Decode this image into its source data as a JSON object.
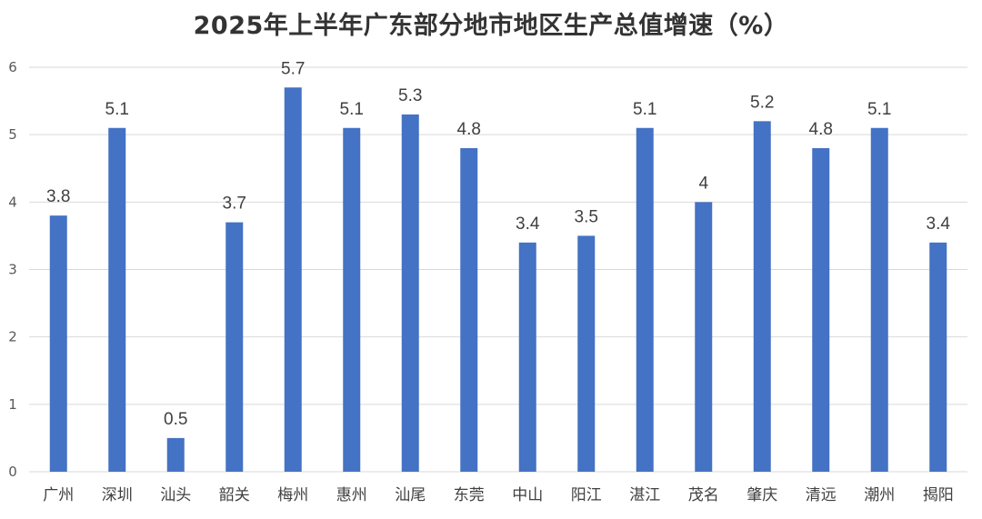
{
  "chart_data": {
    "type": "bar",
    "title": "2025年上半年广东部分地市地区生产总值增速（%）",
    "xlabel": "",
    "ylabel": "",
    "categories": [
      "广州",
      "深圳",
      "汕头",
      "韶关",
      "梅州",
      "惠州",
      "汕尾",
      "东莞",
      "中山",
      "阳江",
      "湛江",
      "茂名",
      "肇庆",
      "清远",
      "潮州",
      "揭阳"
    ],
    "values": [
      3.8,
      5.1,
      0.5,
      3.7,
      5.7,
      5.1,
      5.3,
      4.8,
      3.4,
      3.5,
      5.1,
      4,
      5.2,
      4.8,
      5.1,
      3.4
    ],
    "data_labels": [
      "3.8",
      "5.1",
      "0.5",
      "3.7",
      "5.7",
      "5.1",
      "5.3",
      "4.8",
      "3.4",
      "3.5",
      "5.1",
      "4",
      "5.2",
      "4.8",
      "5.1",
      "3.4"
    ],
    "ylim": [
      0,
      6
    ],
    "yticks": [
      0,
      1,
      2,
      3,
      4,
      5,
      6
    ],
    "grid": true,
    "legend": "none",
    "bar_color": "#4472C4",
    "grid_color": "#D9D9D9"
  }
}
